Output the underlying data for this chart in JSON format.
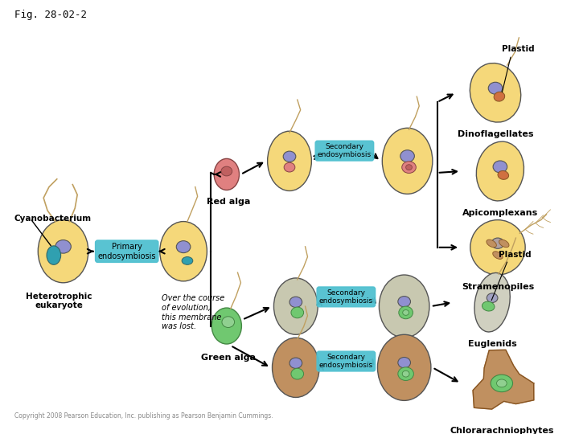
{
  "fig_label": "Fig. 28-02-2",
  "title_fontsize": 9,
  "labels": {
    "plastid_top": "Plastid",
    "dinoflagellates": "Dinoflagellates",
    "apicomplexans": "Apicomplexans",
    "stramenopiles": "Stramenopiles",
    "cyanobacterium": "Cyanobacterium",
    "red_alga": "Red alga",
    "primary_endo": "Primary\nendosymbiosis",
    "secondary_endo": "Secondary\nendosymbiosis",
    "heterotrophic": "Heterotrophic\neukaryote",
    "over_course": "Over the course\nof evolution,\nthis membrane\nwas lost.",
    "green_alga": "Green alga",
    "plastid_bottom": "Plastid",
    "euglenids": "Euglenids",
    "chlorarachniophytes": "Chlorarachniophytes",
    "copyright": "Copyright 2008 Pearson Education, Inc. publishing as Pearson Benjamin Cummings."
  },
  "colors": {
    "bg_color": "#ffffff",
    "cell_yellow": "#F5D87A",
    "red_alga_color": "#E08080",
    "green_alga_color": "#70C870",
    "gray_cell": "#C8C8B0",
    "nucleus_blue": "#9090D0",
    "nucleus_red": "#D06060",
    "plastid_orange": "#D07040",
    "arrow_color": "#000000",
    "box_cyan": "#50C0D0",
    "cyanobacterium_color": "#30A0B0",
    "flagella_color": "#C0A060",
    "brown_cell": "#C09060"
  }
}
